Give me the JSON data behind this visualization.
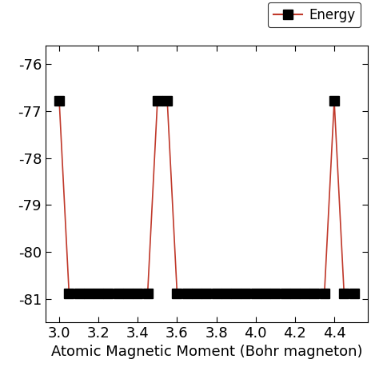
{
  "x_values": [
    3.0,
    3.05,
    3.1,
    3.15,
    3.2,
    3.25,
    3.3,
    3.35,
    3.4,
    3.45,
    3.5,
    3.55,
    3.6,
    3.65,
    3.7,
    3.75,
    3.8,
    3.85,
    3.9,
    3.95,
    4.0,
    4.05,
    4.1,
    4.15,
    4.2,
    4.25,
    4.3,
    4.35,
    4.4,
    4.45,
    4.5
  ],
  "y_values": [
    -76.78,
    -80.89,
    -80.89,
    -80.89,
    -80.89,
    -80.89,
    -80.89,
    -80.89,
    -80.89,
    -80.89,
    -76.78,
    -76.78,
    -80.89,
    -80.89,
    -80.89,
    -80.89,
    -80.89,
    -80.89,
    -80.89,
    -80.89,
    -80.89,
    -80.89,
    -80.89,
    -80.89,
    -80.89,
    -80.89,
    -80.89,
    -80.89,
    -76.78,
    -80.89,
    -80.89
  ],
  "line_color": "#c0392b",
  "marker_color": "#000000",
  "marker_style": "s",
  "marker_size": 8,
  "legend_label": "Energy",
  "xlabel": "Atomic Magnetic Moment (Bohr magneton)",
  "xlim": [
    2.93,
    4.57
  ],
  "ylim": [
    -81.5,
    -75.6
  ],
  "yticks": [
    -76,
    -77,
    -78,
    -79,
    -80,
    -81
  ],
  "xticks": [
    3.0,
    3.2,
    3.4,
    3.6,
    3.8,
    4.0,
    4.2,
    4.4
  ],
  "figsize": [
    4.74,
    4.74
  ],
  "dpi": 100,
  "background_color": "#ffffff",
  "tick_fontsize": 13,
  "xlabel_fontsize": 13,
  "legend_fontsize": 12
}
